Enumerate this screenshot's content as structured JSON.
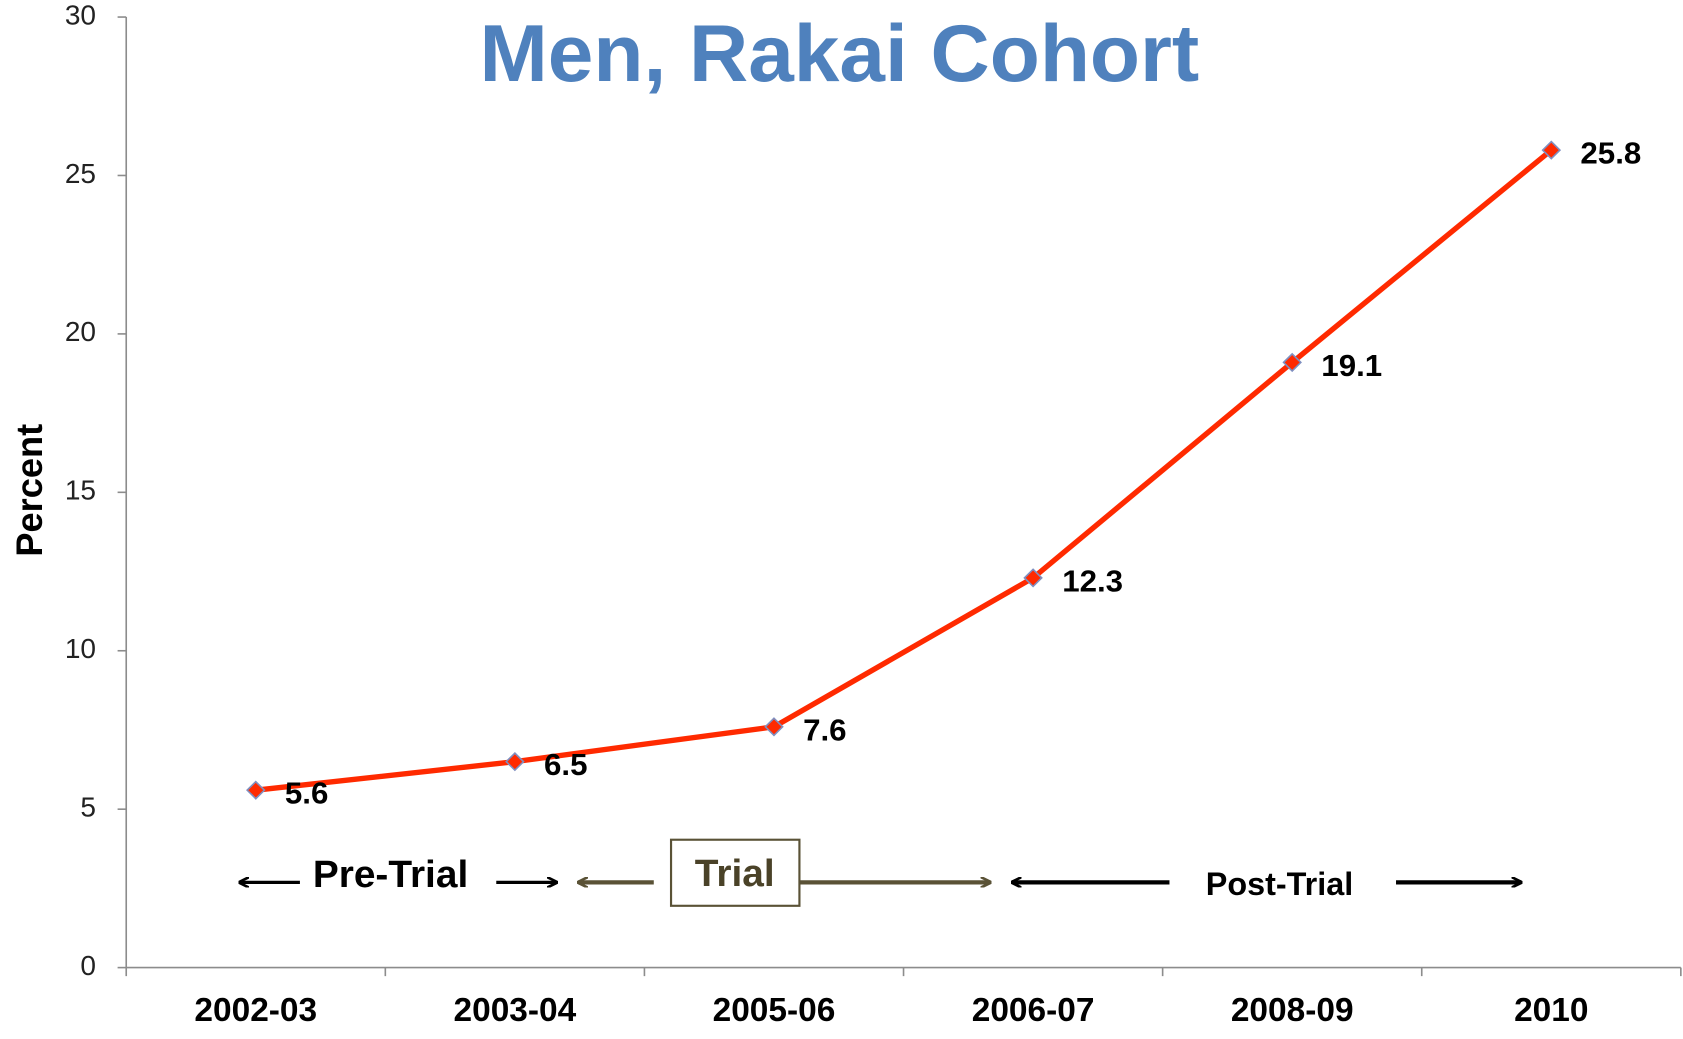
{
  "chart_data": {
    "type": "line",
    "title": "Men, Rakai Cohort",
    "y_label": "Percent",
    "categories": [
      "2002-03",
      "2003-04",
      "2005-06",
      "2006-07",
      "2008-09",
      "2010"
    ],
    "series": [
      {
        "name": "Men",
        "color": "#ff2a00",
        "values": [
          5.6,
          6.5,
          7.6,
          12.3,
          19.1,
          25.8
        ]
      }
    ],
    "ylim": [
      0,
      30
    ],
    "yticks": [
      0,
      5,
      10,
      15,
      20,
      25,
      30
    ],
    "grid": false,
    "annotations": [
      "Pre-Trial",
      "Trial",
      "Post-Trial"
    ]
  }
}
